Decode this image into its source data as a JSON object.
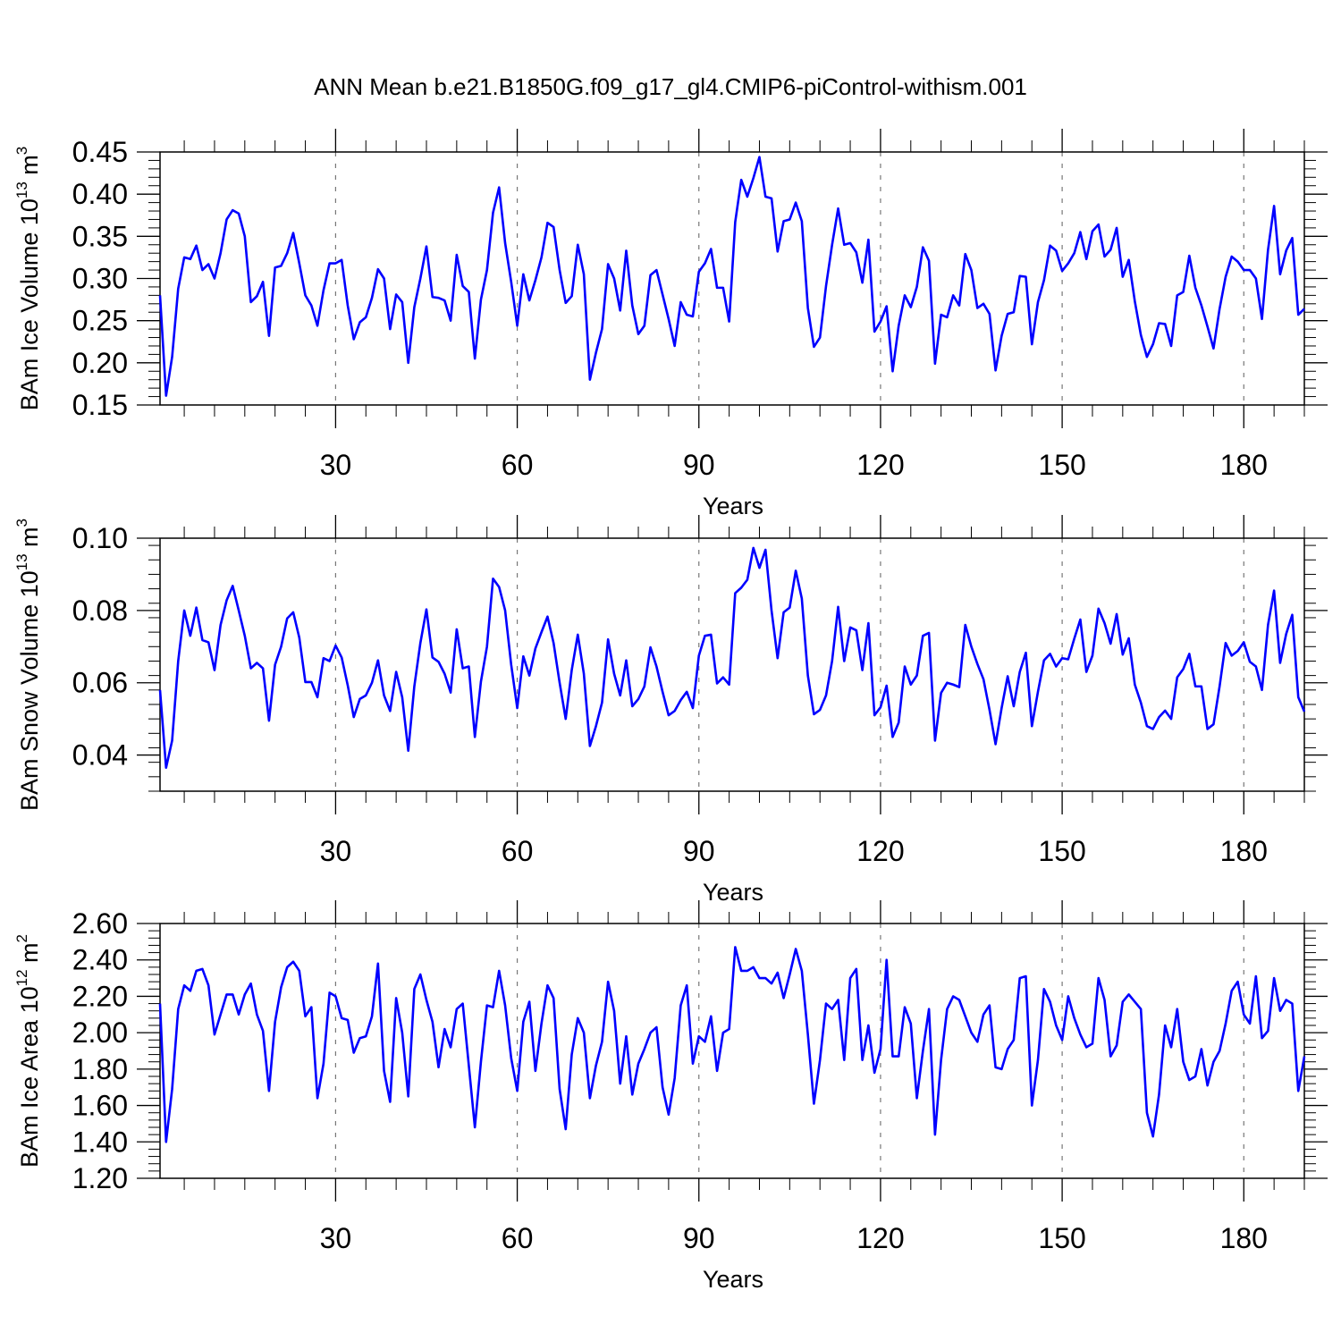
{
  "title": "ANN Mean b.e21.B1850G.f09_g17_gl4.CMIP6-piControl-withism.001",
  "colors": {
    "line": "#0000ff",
    "axes": "#000000",
    "grid": "#777777"
  },
  "chart_data": [
    {
      "type": "line",
      "ylabel": {
        "base": "BAm Ice Volume 10",
        "exp": "13",
        "unit": " m",
        "unit_exp": "3"
      },
      "xlabel": "Years",
      "xlim": [
        1,
        190
      ],
      "ylim": [
        0.15,
        0.45
      ],
      "xticks": [
        30,
        60,
        90,
        120,
        150,
        180
      ],
      "xtick_labels": [
        "30",
        "60",
        "90",
        "120",
        "150",
        "180"
      ],
      "yticks": [
        0.15,
        0.2,
        0.25,
        0.3,
        0.35,
        0.4,
        0.45
      ],
      "ytick_labels": [
        "0.15",
        "0.20",
        "0.25",
        "0.30",
        "0.35",
        "0.40",
        "0.45"
      ],
      "grid": "dashed vertical at labeled years",
      "series": [
        {
          "values": [
            0.28,
            0.161,
            0.207,
            0.288,
            0.325,
            0.323,
            0.339,
            0.31,
            0.317,
            0.3,
            0.33,
            0.37,
            0.381,
            0.377,
            0.35,
            0.272,
            0.279,
            0.296,
            0.232,
            0.313,
            0.315,
            0.33,
            0.354,
            0.318,
            0.28,
            0.268,
            0.244,
            0.286,
            0.318,
            0.318,
            0.322,
            0.268,
            0.228,
            0.248,
            0.254,
            0.277,
            0.311,
            0.3,
            0.24,
            0.281,
            0.272,
            0.2,
            0.266,
            0.3,
            0.338,
            0.278,
            0.277,
            0.274,
            0.25,
            0.328,
            0.291,
            0.284,
            0.205,
            0.275,
            0.31,
            0.378,
            0.408,
            0.342,
            0.296,
            0.244,
            0.305,
            0.274,
            0.298,
            0.325,
            0.366,
            0.361,
            0.31,
            0.271,
            0.279,
            0.34,
            0.305,
            0.18,
            0.212,
            0.24,
            0.317,
            0.3,
            0.262,
            0.333,
            0.268,
            0.234,
            0.244,
            0.304,
            0.31,
            0.281,
            0.252,
            0.22,
            0.272,
            0.257,
            0.255,
            0.308,
            0.318,
            0.335,
            0.289,
            0.289,
            0.249,
            0.367,
            0.417,
            0.397,
            0.419,
            0.444,
            0.397,
            0.395,
            0.332,
            0.368,
            0.37,
            0.39,
            0.368,
            0.265,
            0.219,
            0.23,
            0.291,
            0.34,
            0.383,
            0.34,
            0.342,
            0.331,
            0.295,
            0.346,
            0.237,
            0.249,
            0.267,
            0.19,
            0.244,
            0.28,
            0.266,
            0.29,
            0.337,
            0.321,
            0.199,
            0.257,
            0.254,
            0.28,
            0.268,
            0.329,
            0.31,
            0.265,
            0.27,
            0.258,
            0.191,
            0.232,
            0.258,
            0.26,
            0.303,
            0.302,
            0.222,
            0.272,
            0.298,
            0.339,
            0.333,
            0.309,
            0.318,
            0.33,
            0.355,
            0.323,
            0.356,
            0.364,
            0.326,
            0.334,
            0.36,
            0.302,
            0.322,
            0.273,
            0.233,
            0.207,
            0.222,
            0.247,
            0.246,
            0.22,
            0.28,
            0.284,
            0.327,
            0.289,
            0.268,
            0.243,
            0.217,
            0.264,
            0.302,
            0.326,
            0.32,
            0.31,
            0.31,
            0.3,
            0.252,
            0.334,
            0.386,
            0.305,
            0.333,
            0.348,
            0.257,
            0.264
          ]
        }
      ]
    },
    {
      "type": "line",
      "ylabel": {
        "base": "BAm Snow Volume 10",
        "exp": "13",
        "unit": " m",
        "unit_exp": "3"
      },
      "xlabel": "Years",
      "xlim": [
        1,
        190
      ],
      "ylim": [
        0.03,
        0.1
      ],
      "xticks": [
        30,
        60,
        90,
        120,
        150,
        180
      ],
      "xtick_labels": [
        "30",
        "60",
        "90",
        "120",
        "150",
        "180"
      ],
      "yticks": [
        0.04,
        0.06,
        0.08,
        0.1
      ],
      "ytick_labels": [
        "0.04",
        "0.06",
        "0.08",
        "0.10"
      ],
      "grid": "dashed vertical at labeled years",
      "series": [
        {
          "values": [
            0.058,
            0.0365,
            0.044,
            0.066,
            0.08,
            0.073,
            0.0808,
            0.0718,
            0.0712,
            0.0635,
            0.076,
            0.0828,
            0.0868,
            0.08,
            0.073,
            0.064,
            0.0655,
            0.064,
            0.0495,
            0.065,
            0.07,
            0.0778,
            0.0795,
            0.0725,
            0.0602,
            0.0602,
            0.056,
            0.0668,
            0.066,
            0.0703,
            0.067,
            0.0593,
            0.0505,
            0.0555,
            0.0565,
            0.06,
            0.0662,
            0.0565,
            0.0522,
            0.063,
            0.056,
            0.0412,
            0.059,
            0.071,
            0.0803,
            0.067,
            0.0658,
            0.0625,
            0.0573,
            0.0748,
            0.064,
            0.0645,
            0.045,
            0.0603,
            0.07,
            0.0888,
            0.0865,
            0.08,
            0.065,
            0.053,
            0.0673,
            0.062,
            0.0695,
            0.074,
            0.0783,
            0.071,
            0.06,
            0.05,
            0.0635,
            0.0733,
            0.0625,
            0.0425,
            0.048,
            0.0545,
            0.072,
            0.0625,
            0.0565,
            0.0662,
            0.0535,
            0.0555,
            0.059,
            0.0698,
            0.0645,
            0.0575,
            0.051,
            0.0522,
            0.0552,
            0.0575,
            0.053,
            0.0675,
            0.073,
            0.0733,
            0.0598,
            0.0615,
            0.0595,
            0.0848,
            0.0863,
            0.0885,
            0.0973,
            0.0918,
            0.0968,
            0.08,
            0.0668,
            0.0795,
            0.0808,
            0.091,
            0.0833,
            0.062,
            0.0513,
            0.0525,
            0.0565,
            0.066,
            0.081,
            0.066,
            0.0753,
            0.0745,
            0.0635,
            0.0765,
            0.051,
            0.0532,
            0.0592,
            0.045,
            0.049,
            0.0645,
            0.0595,
            0.062,
            0.073,
            0.0738,
            0.044,
            0.0572,
            0.06,
            0.0595,
            0.0588,
            0.076,
            0.07,
            0.0652,
            0.061,
            0.0525,
            0.043,
            0.053,
            0.0618,
            0.0535,
            0.063,
            0.0683,
            0.048,
            0.0575,
            0.0662,
            0.068,
            0.0645,
            0.0668,
            0.0665,
            0.0722,
            0.0775,
            0.063,
            0.0675,
            0.0805,
            0.0765,
            0.0708,
            0.079,
            0.0678,
            0.0723,
            0.0595,
            0.0545,
            0.048,
            0.0472,
            0.0505,
            0.0523,
            0.05,
            0.0615,
            0.0638,
            0.068,
            0.059,
            0.059,
            0.0472,
            0.0485,
            0.059,
            0.071,
            0.0675,
            0.0688,
            0.0712,
            0.0658,
            0.0645,
            0.058,
            0.076,
            0.0855,
            0.0655,
            0.0735,
            0.0788,
            0.056,
            0.052
          ]
        }
      ]
    },
    {
      "type": "line",
      "ylabel": {
        "base": "BAm Ice Area 10",
        "exp": "12",
        "unit": " m",
        "unit_exp": "2"
      },
      "xlabel": "Years",
      "xlim": [
        1,
        190
      ],
      "ylim": [
        1.2,
        2.6
      ],
      "xticks": [
        30,
        60,
        90,
        120,
        150,
        180
      ],
      "xtick_labels": [
        "30",
        "60",
        "90",
        "120",
        "150",
        "180"
      ],
      "yticks": [
        1.2,
        1.4,
        1.6,
        1.8,
        2.0,
        2.2,
        2.4,
        2.6
      ],
      "ytick_labels": [
        "1.20",
        "1.40",
        "1.60",
        "1.80",
        "2.00",
        "2.20",
        "2.40",
        "2.60"
      ],
      "grid": "dashed vertical at labeled years",
      "series": [
        {
          "values": [
            2.16,
            1.4,
            1.69,
            2.13,
            2.26,
            2.23,
            2.34,
            2.35,
            2.26,
            1.99,
            2.1,
            2.21,
            2.21,
            2.1,
            2.21,
            2.27,
            2.1,
            2.01,
            1.68,
            2.06,
            2.25,
            2.36,
            2.39,
            2.34,
            2.09,
            2.14,
            1.64,
            1.83,
            2.22,
            2.2,
            2.08,
            2.07,
            1.89,
            1.97,
            1.98,
            2.09,
            2.38,
            1.79,
            1.62,
            2.19,
            2.0,
            1.65,
            2.24,
            2.32,
            2.18,
            2.06,
            1.81,
            2.02,
            1.92,
            2.13,
            2.16,
            1.82,
            1.48,
            1.84,
            2.15,
            2.14,
            2.34,
            2.15,
            1.86,
            1.68,
            2.06,
            2.17,
            1.79,
            2.05,
            2.26,
            2.19,
            1.69,
            1.47,
            1.88,
            2.08,
            2.0,
            1.64,
            1.82,
            1.95,
            2.28,
            2.12,
            1.72,
            1.98,
            1.66,
            1.83,
            1.91,
            2.0,
            2.03,
            1.7,
            1.55,
            1.75,
            2.15,
            2.26,
            1.83,
            1.98,
            1.95,
            2.09,
            1.79,
            2.0,
            2.02,
            2.47,
            2.34,
            2.34,
            2.36,
            2.3,
            2.3,
            2.27,
            2.33,
            2.19,
            2.32,
            2.46,
            2.34,
            1.99,
            1.61,
            1.85,
            2.16,
            2.13,
            2.18,
            1.85,
            2.3,
            2.35,
            1.85,
            2.04,
            1.78,
            1.91,
            2.4,
            1.87,
            1.87,
            2.14,
            2.05,
            1.64,
            1.9,
            2.13,
            1.44,
            1.85,
            2.13,
            2.2,
            2.18,
            2.09,
            2.0,
            1.95,
            2.1,
            2.15,
            1.81,
            1.8,
            1.91,
            1.96,
            2.3,
            2.31,
            1.6,
            1.85,
            2.24,
            2.17,
            2.04,
            1.96,
            2.2,
            2.08,
            1.99,
            1.92,
            1.94,
            2.3,
            2.18,
            1.87,
            1.93,
            2.17,
            2.21,
            2.17,
            2.13,
            1.56,
            1.43,
            1.66,
            2.04,
            1.92,
            2.13,
            1.84,
            1.74,
            1.76,
            1.91,
            1.71,
            1.84,
            1.9,
            2.05,
            2.23,
            2.28,
            2.1,
            2.05,
            2.31,
            1.97,
            2.01,
            2.3,
            2.12,
            2.18,
            2.16,
            1.68,
            1.87
          ]
        }
      ]
    }
  ]
}
